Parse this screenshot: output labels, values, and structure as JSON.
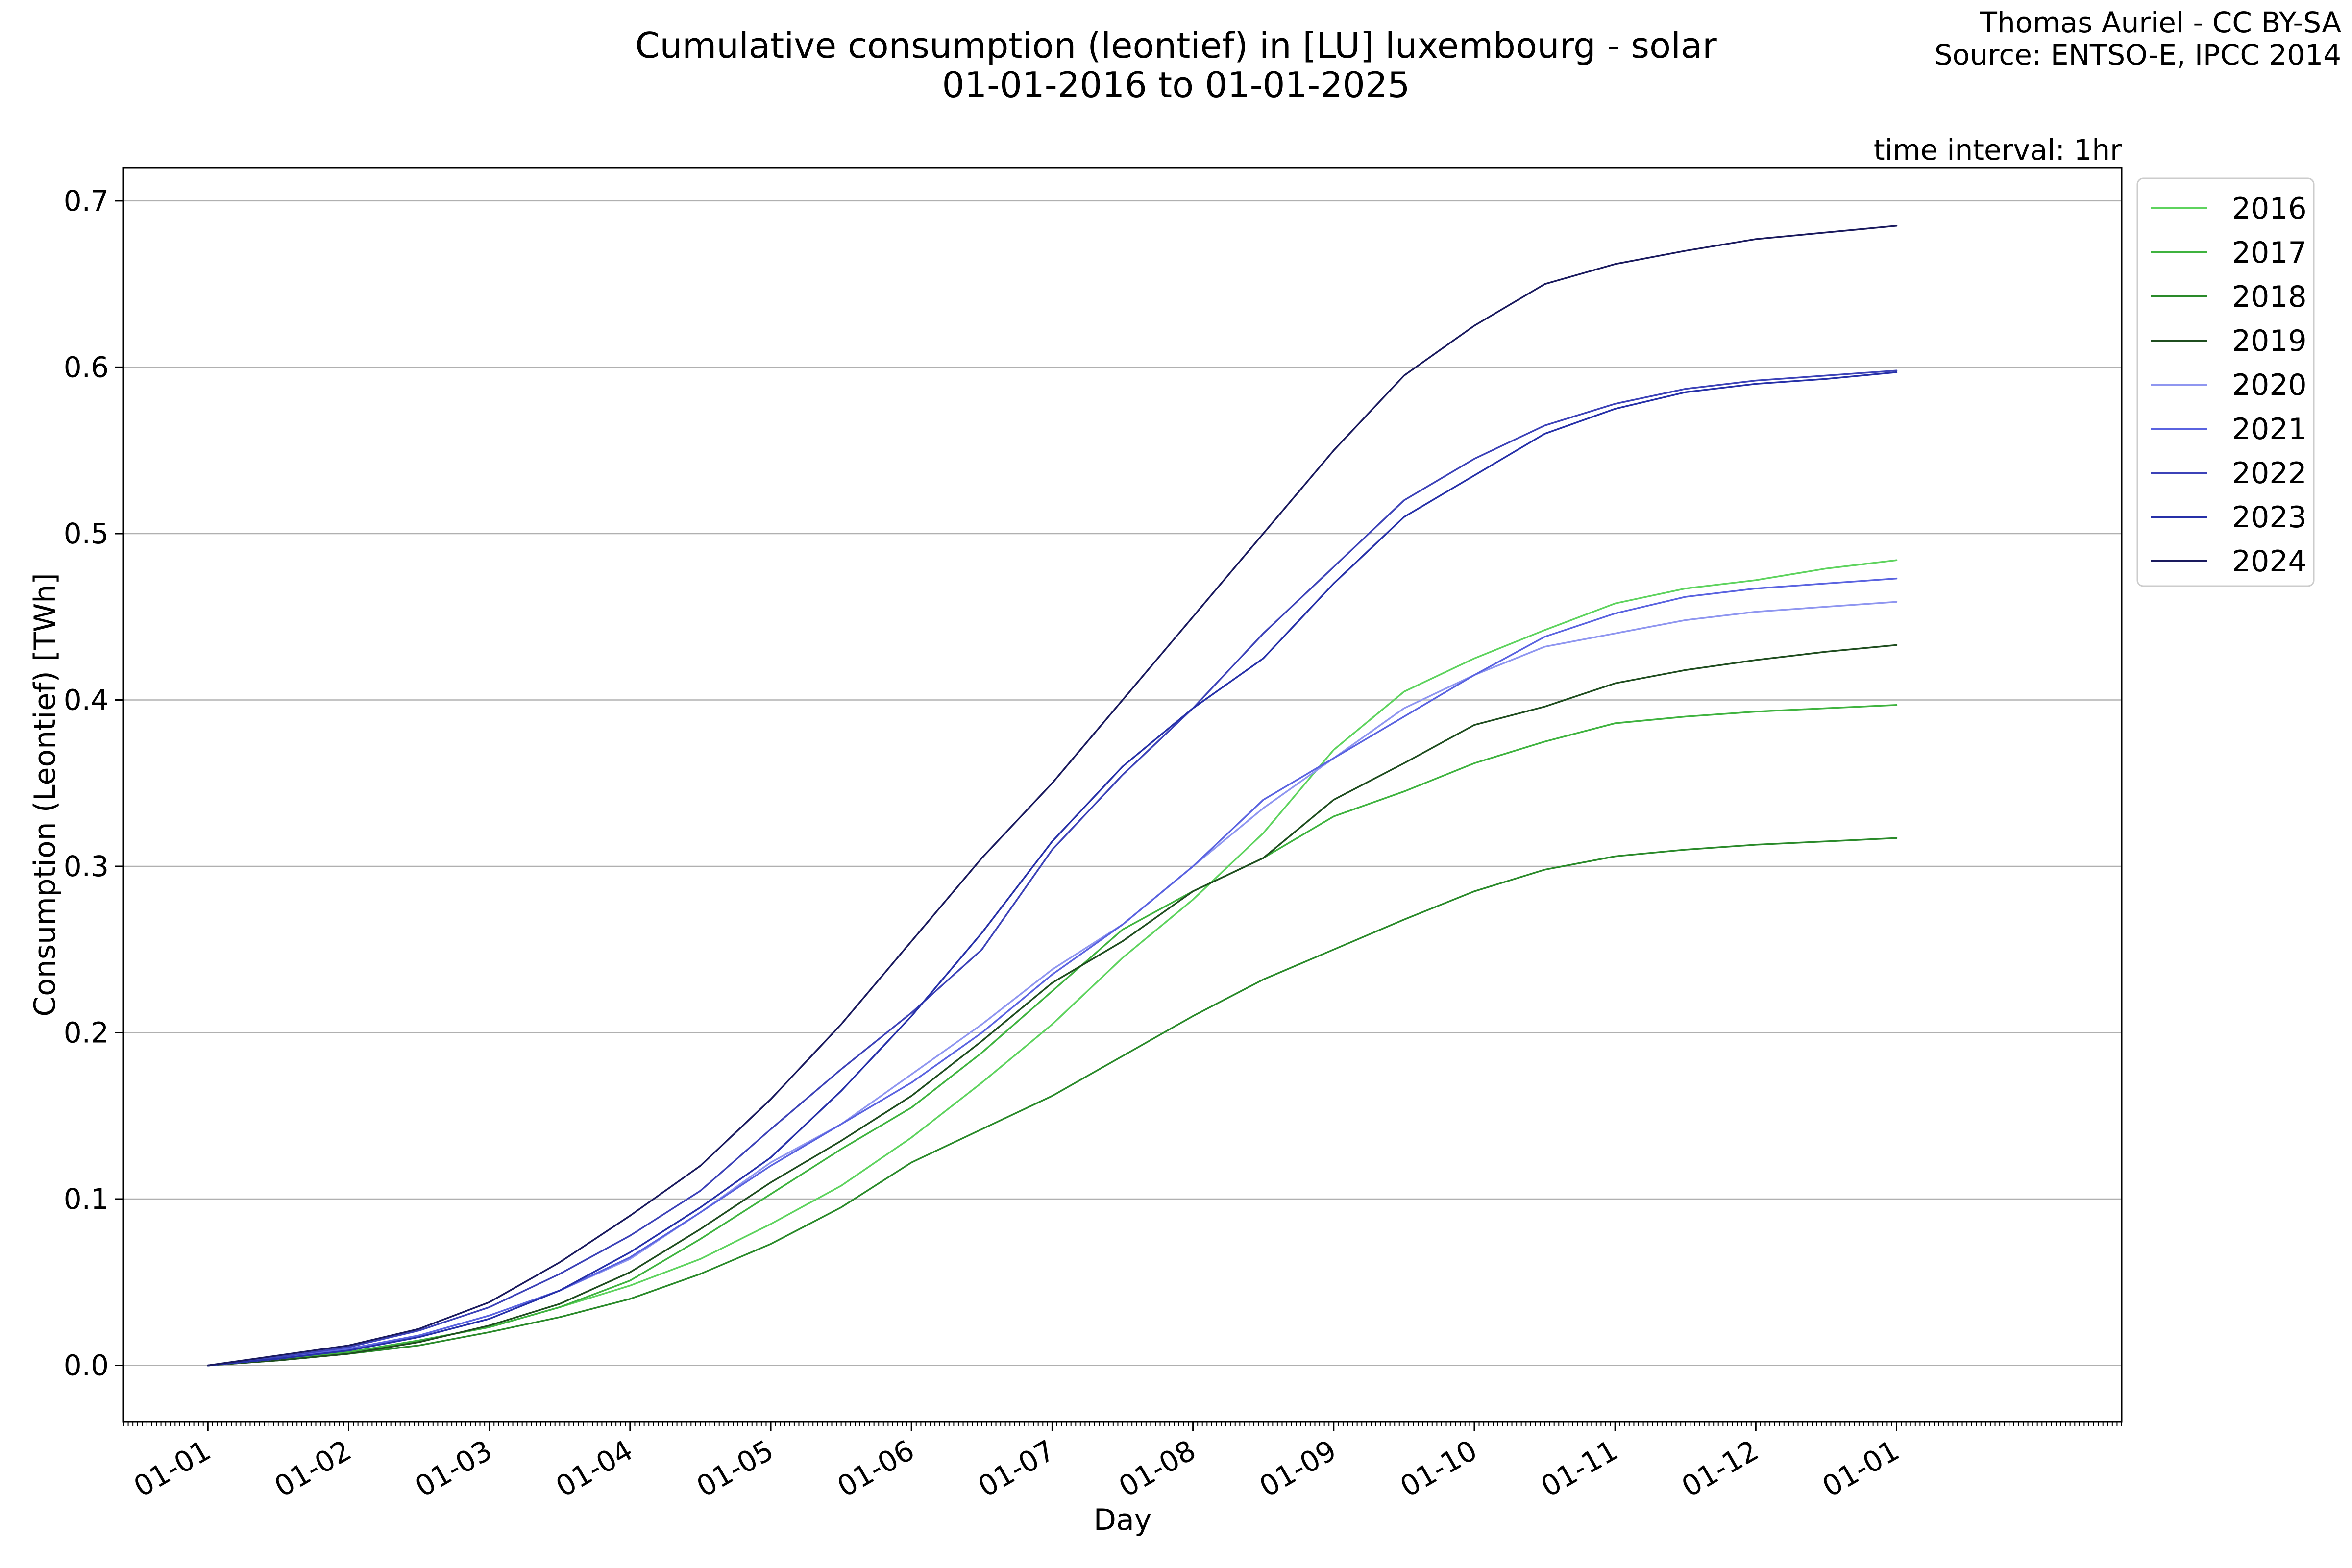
{
  "chart_data": {
    "type": "line",
    "title": "Cumulative consumption (leontief) in [LU] luxembourg - solar",
    "subtitle": "01-01-2016 to 01-01-2025",
    "credit_line1": "Thomas Auriel - CC BY-SA",
    "credit_line2": "Source: ENTSO-E, IPCC 2014",
    "annotation": "time interval: 1hr",
    "xlabel": "Day",
    "ylabel": "Consumption (Leontief) [TWh]",
    "ylim": [
      -0.034,
      0.72
    ],
    "xlim": [
      -0.6,
      13.6
    ],
    "grid": "horizontal",
    "legend_position": "outside-right-top",
    "x_ticks": [
      {
        "pos": 0,
        "label": "01-01"
      },
      {
        "pos": 1,
        "label": "01-02"
      },
      {
        "pos": 2,
        "label": "01-03"
      },
      {
        "pos": 3,
        "label": "01-04"
      },
      {
        "pos": 4,
        "label": "01-05"
      },
      {
        "pos": 5,
        "label": "01-06"
      },
      {
        "pos": 6,
        "label": "01-07"
      },
      {
        "pos": 7,
        "label": "01-08"
      },
      {
        "pos": 8,
        "label": "01-09"
      },
      {
        "pos": 9,
        "label": "01-10"
      },
      {
        "pos": 10,
        "label": "01-11"
      },
      {
        "pos": 11,
        "label": "01-12"
      },
      {
        "pos": 12,
        "label": "01-01"
      }
    ],
    "y_ticks": [
      {
        "value": 0.0,
        "label": "0.0"
      },
      {
        "value": 0.1,
        "label": "0.1"
      },
      {
        "value": 0.2,
        "label": "0.2"
      },
      {
        "value": 0.3,
        "label": "0.3"
      },
      {
        "value": 0.4,
        "label": "0.4"
      },
      {
        "value": 0.5,
        "label": "0.5"
      },
      {
        "value": 0.6,
        "label": "0.6"
      },
      {
        "value": 0.7,
        "label": "0.7"
      }
    ],
    "x": [
      0,
      0.5,
      1,
      1.5,
      2,
      2.5,
      3,
      3.5,
      4,
      4.5,
      5,
      5.5,
      6,
      6.5,
      7,
      7.5,
      8,
      8.5,
      9,
      9.5,
      10,
      10.5,
      11,
      11.5,
      12
    ],
    "series": [
      {
        "name": "2016",
        "color": "#5ed35e",
        "values": [
          0,
          0.004,
          0.008,
          0.015,
          0.023,
          0.035,
          0.048,
          0.064,
          0.085,
          0.108,
          0.137,
          0.17,
          0.205,
          0.245,
          0.28,
          0.32,
          0.37,
          0.405,
          0.425,
          0.442,
          0.458,
          0.467,
          0.472,
          0.479,
          0.484
        ]
      },
      {
        "name": "2017",
        "color": "#3fb33f",
        "values": [
          0,
          0.004,
          0.008,
          0.015,
          0.023,
          0.035,
          0.051,
          0.076,
          0.103,
          0.13,
          0.155,
          0.188,
          0.225,
          0.262,
          0.285,
          0.305,
          0.33,
          0.345,
          0.362,
          0.375,
          0.386,
          0.39,
          0.393,
          0.395,
          0.397
        ]
      },
      {
        "name": "2018",
        "color": "#2a8a2a",
        "values": [
          0,
          0.003,
          0.007,
          0.012,
          0.02,
          0.029,
          0.04,
          0.055,
          0.073,
          0.095,
          0.122,
          0.142,
          0.162,
          0.186,
          0.21,
          0.232,
          0.25,
          0.268,
          0.285,
          0.298,
          0.306,
          0.31,
          0.313,
          0.315,
          0.317
        ]
      },
      {
        "name": "2019",
        "color": "#1f4d1f",
        "values": [
          0,
          0.003,
          0.007,
          0.014,
          0.024,
          0.037,
          0.056,
          0.082,
          0.11,
          0.135,
          0.162,
          0.195,
          0.23,
          0.255,
          0.285,
          0.305,
          0.34,
          0.362,
          0.385,
          0.396,
          0.41,
          0.418,
          0.424,
          0.429,
          0.433
        ]
      },
      {
        "name": "2020",
        "color": "#8f96f0",
        "values": [
          0,
          0.004,
          0.01,
          0.018,
          0.03,
          0.045,
          0.064,
          0.092,
          0.122,
          0.145,
          0.175,
          0.205,
          0.238,
          0.265,
          0.3,
          0.335,
          0.365,
          0.395,
          0.415,
          0.432,
          0.44,
          0.448,
          0.453,
          0.456,
          0.459
        ]
      },
      {
        "name": "2021",
        "color": "#5a63e0",
        "values": [
          0,
          0.004,
          0.01,
          0.018,
          0.03,
          0.045,
          0.065,
          0.092,
          0.12,
          0.145,
          0.17,
          0.2,
          0.235,
          0.265,
          0.3,
          0.34,
          0.365,
          0.39,
          0.415,
          0.438,
          0.452,
          0.462,
          0.467,
          0.47,
          0.473
        ]
      },
      {
        "name": "2022",
        "color": "#3c42b8",
        "values": [
          0,
          0.005,
          0.011,
          0.021,
          0.035,
          0.055,
          0.078,
          0.105,
          0.142,
          0.178,
          0.212,
          0.25,
          0.31,
          0.355,
          0.395,
          0.44,
          0.48,
          0.52,
          0.545,
          0.565,
          0.578,
          0.587,
          0.592,
          0.595,
          0.598
        ]
      },
      {
        "name": "2023",
        "color": "#2630a8",
        "values": [
          0,
          0.004,
          0.009,
          0.017,
          0.028,
          0.045,
          0.068,
          0.095,
          0.125,
          0.165,
          0.21,
          0.26,
          0.315,
          0.36,
          0.395,
          0.425,
          0.47,
          0.51,
          0.535,
          0.56,
          0.575,
          0.585,
          0.59,
          0.593,
          0.597
        ]
      },
      {
        "name": "2024",
        "color": "#1a1a5e",
        "values": [
          0,
          0.006,
          0.012,
          0.022,
          0.038,
          0.062,
          0.09,
          0.12,
          0.16,
          0.205,
          0.255,
          0.305,
          0.35,
          0.4,
          0.45,
          0.5,
          0.55,
          0.595,
          0.625,
          0.65,
          0.662,
          0.67,
          0.677,
          0.681,
          0.685
        ]
      }
    ]
  }
}
